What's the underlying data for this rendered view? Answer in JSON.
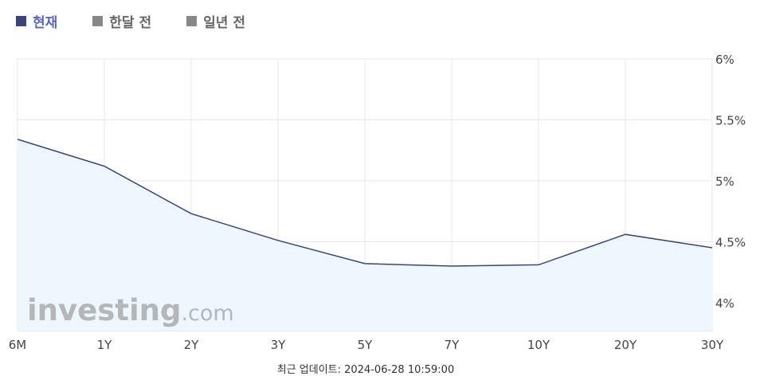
{
  "legend": {
    "items": [
      {
        "label": "현재",
        "color": "#3b4478",
        "text_color": "#5a67b8"
      },
      {
        "label": "한달 전",
        "color": "#888888",
        "text_color": "#666666"
      },
      {
        "label": "일년 전",
        "color": "#888888",
        "text_color": "#666666"
      }
    ]
  },
  "chart_data": {
    "type": "area",
    "title": "",
    "categories": [
      "6M",
      "1Y",
      "2Y",
      "3Y",
      "5Y",
      "7Y",
      "10Y",
      "20Y",
      "30Y"
    ],
    "series": [
      {
        "name": "현재",
        "values": [
          5.34,
          5.12,
          4.73,
          4.51,
          4.32,
          4.3,
          4.31,
          4.56,
          4.45
        ],
        "color": "#3b4478",
        "fill": "#eef7fd"
      }
    ],
    "ylim": [
      3.77,
      6.0
    ],
    "yticks": [
      4,
      4.5,
      5,
      5.5,
      6
    ],
    "ytick_labels": [
      "4%",
      "4.5%",
      "5%",
      "5.5%",
      "6%"
    ],
    "grid": true,
    "y_axis_position": "right",
    "legend_position": "top-left"
  },
  "watermark": {
    "text_main": "investing",
    "text_suffix": ".com"
  },
  "footer": {
    "text": "최근 업데이트: 2024-06-28 10:59:00"
  }
}
